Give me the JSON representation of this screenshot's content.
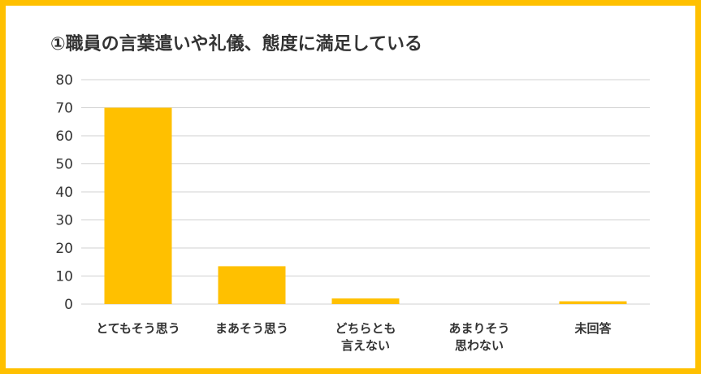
{
  "colors": {
    "frame": "#FFC000",
    "bar": "#FFC000",
    "grid": "#D0D0D0",
    "text": "#333333"
  },
  "chart_data": {
    "type": "bar",
    "title": "①職員の言葉遣いや礼儀、態度に満足している",
    "categories": [
      [
        "とてもそう思う"
      ],
      [
        "まあそう思う"
      ],
      [
        "どちらとも",
        "言えない"
      ],
      [
        "あまりそう",
        "思わない"
      ],
      [
        "未回答"
      ]
    ],
    "values": [
      70,
      13.5,
      2,
      0,
      1
    ],
    "ylim": [
      0,
      80
    ],
    "yticks": [
      "0",
      "10",
      "20",
      "30",
      "40",
      "50",
      "60",
      "70",
      "80"
    ],
    "grid": true,
    "legend": "none"
  }
}
